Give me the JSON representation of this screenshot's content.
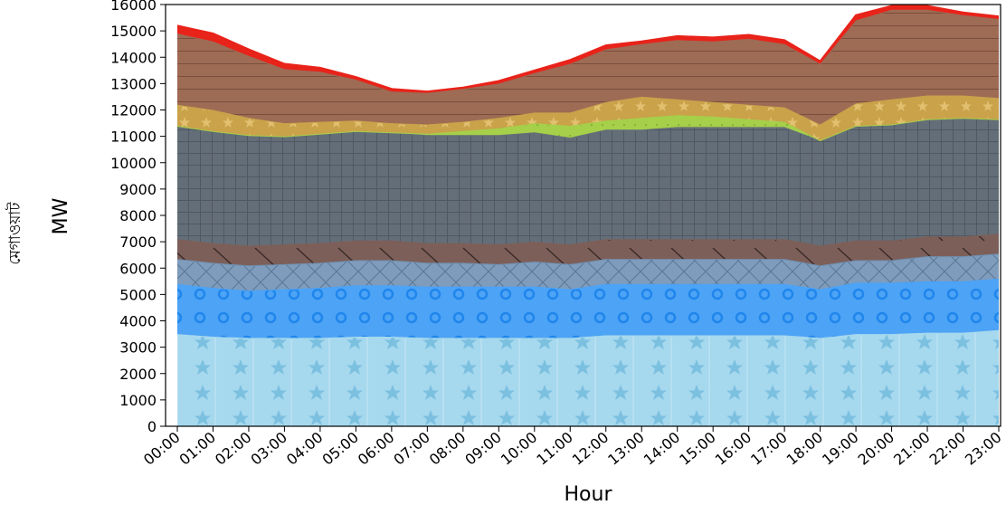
{
  "chart_data": {
    "type": "area",
    "stacked": true,
    "xlabel": "Hour",
    "ylabel": "MW",
    "ylabel_secondary": "মেগাওয়াট",
    "ylim": [
      0,
      16000
    ],
    "yticks": [
      0,
      1000,
      2000,
      3000,
      4000,
      5000,
      6000,
      7000,
      8000,
      9000,
      10000,
      11000,
      12000,
      13000,
      14000,
      15000,
      16000
    ],
    "categories": [
      "00:00",
      "01:00",
      "02:00",
      "03:00",
      "04:00",
      "05:00",
      "06:00",
      "07:00",
      "08:00",
      "09:00",
      "10:00",
      "11:00",
      "12:00",
      "13:00",
      "14:00",
      "15:00",
      "16:00",
      "17:00",
      "18:00",
      "19:00",
      "20:00",
      "21:00",
      "22:00",
      "23:00"
    ],
    "grid": false,
    "series": [
      {
        "values": [
          3500,
          3400,
          3350,
          3350,
          3350,
          3400,
          3400,
          3350,
          3350,
          3350,
          3350,
          3350,
          3450,
          3450,
          3450,
          3450,
          3450,
          3450,
          3350,
          3500,
          3500,
          3550,
          3550,
          3650
        ],
        "color": "#a6d8ee",
        "pattern": "star"
      },
      {
        "values": [
          1900,
          1850,
          1800,
          1850,
          1900,
          1950,
          1950,
          1950,
          1950,
          1950,
          1950,
          1850,
          1950,
          1950,
          1950,
          1950,
          1950,
          1950,
          1850,
          1950,
          1950,
          1950,
          1950,
          1950
        ],
        "color": "#4da3f5",
        "pattern": "circle"
      },
      {
        "values": [
          950,
          950,
          950,
          950,
          950,
          950,
          950,
          900,
          900,
          850,
          950,
          950,
          950,
          950,
          950,
          950,
          950,
          950,
          900,
          850,
          850,
          950,
          950,
          950
        ],
        "color": "#6f8fb0",
        "pattern": "cross"
      },
      {
        "values": [
          750,
          750,
          750,
          750,
          750,
          750,
          750,
          750,
          750,
          750,
          750,
          750,
          750,
          750,
          750,
          750,
          750,
          750,
          750,
          750,
          750,
          750,
          750,
          750
        ],
        "color": "#7d5f59",
        "pattern": "diag"
      },
      {
        "values": [
          4300,
          4250,
          4200,
          4100,
          4150,
          4150,
          4100,
          4100,
          4100,
          4150,
          4150,
          4050,
          4150,
          4150,
          4250,
          4250,
          4250,
          4250,
          4000,
          4350,
          4400,
          4450,
          4500,
          4350
        ],
        "color": "#646e78",
        "pattern": "grid"
      },
      {
        "values": [
          0,
          0,
          0,
          0,
          0,
          0,
          0,
          50,
          150,
          250,
          350,
          450,
          350,
          450,
          450,
          400,
          300,
          200,
          0,
          0,
          0,
          0,
          0,
          0
        ],
        "color": "#a6cf4a",
        "pattern": "dot"
      },
      {
        "values": [
          800,
          800,
          650,
          500,
          450,
          400,
          350,
          350,
          350,
          400,
          400,
          500,
          700,
          800,
          600,
          550,
          550,
          550,
          600,
          850,
          950,
          900,
          850,
          800
        ],
        "color": "#c9a24a",
        "pattern": "smallstar"
      },
      {
        "values": [
          2700,
          2600,
          2350,
          2050,
          1900,
          1550,
          1200,
          1200,
          1250,
          1300,
          1500,
          1850,
          2000,
          2000,
          2250,
          2300,
          2500,
          2400,
          2300,
          3150,
          3400,
          3250,
          3050,
          3000
        ],
        "color": "#9e6b55",
        "pattern": "hline"
      },
      {
        "values": [
          300,
          300,
          250,
          200,
          150,
          100,
          100,
          50,
          50,
          100,
          100,
          150,
          150,
          100,
          150,
          150,
          150,
          150,
          100,
          200,
          150,
          150,
          100,
          100
        ],
        "color": "#e8231a",
        "pattern": "none"
      }
    ]
  }
}
